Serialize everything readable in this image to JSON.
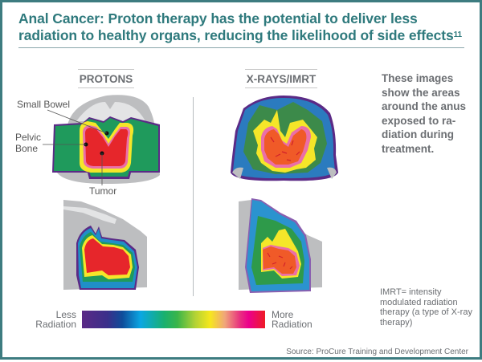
{
  "header": {
    "title": "Anal Cancer: Proton therapy has the potential to deliver less radiation to healthy organs, reducing the likelihood of side effects",
    "title_superscript": "11"
  },
  "columns": {
    "protons_label": "PROTONS",
    "xrays_label": "X-RAYS/IMRT"
  },
  "annotations": {
    "small_bowel": "Small Bowel",
    "pelvic_bone_line1": "Pelvic",
    "pelvic_bone_line2": "Bone",
    "tumor": "Tumor"
  },
  "side_note": "These images show the areas around the anus exposed to ra-diation during treatment.",
  "imrt_note": "IMRT= intensity modulated radiation therapy (a type of X-ray therapy)",
  "legend": {
    "less_line1": "Less",
    "less_line2": "Radiation",
    "more_line1": "More",
    "more_line2": "Radiation",
    "scale_colors": [
      "#5b2a86",
      "#0f4c9a",
      "#0aa7e3",
      "#19b06e",
      "#b5d334",
      "#f6e71d",
      "#e8347f",
      "#ee1c25"
    ]
  },
  "source": "Source: ProCure Training and Development Center",
  "colors": {
    "frame": "#3d7c80",
    "title": "#2f7a7d",
    "text_gray": "#6b6e72",
    "tissue_gray": "#bdbec0",
    "low_dose_purple": "#5b2a86",
    "blue": "#2b7bbf",
    "green": "#1f9a5c",
    "dark_green": "#3c8a4a",
    "yellow": "#f5e629",
    "pink": "#ea6fa8",
    "red": "#e6262b",
    "orange_red": "#f05a28"
  }
}
